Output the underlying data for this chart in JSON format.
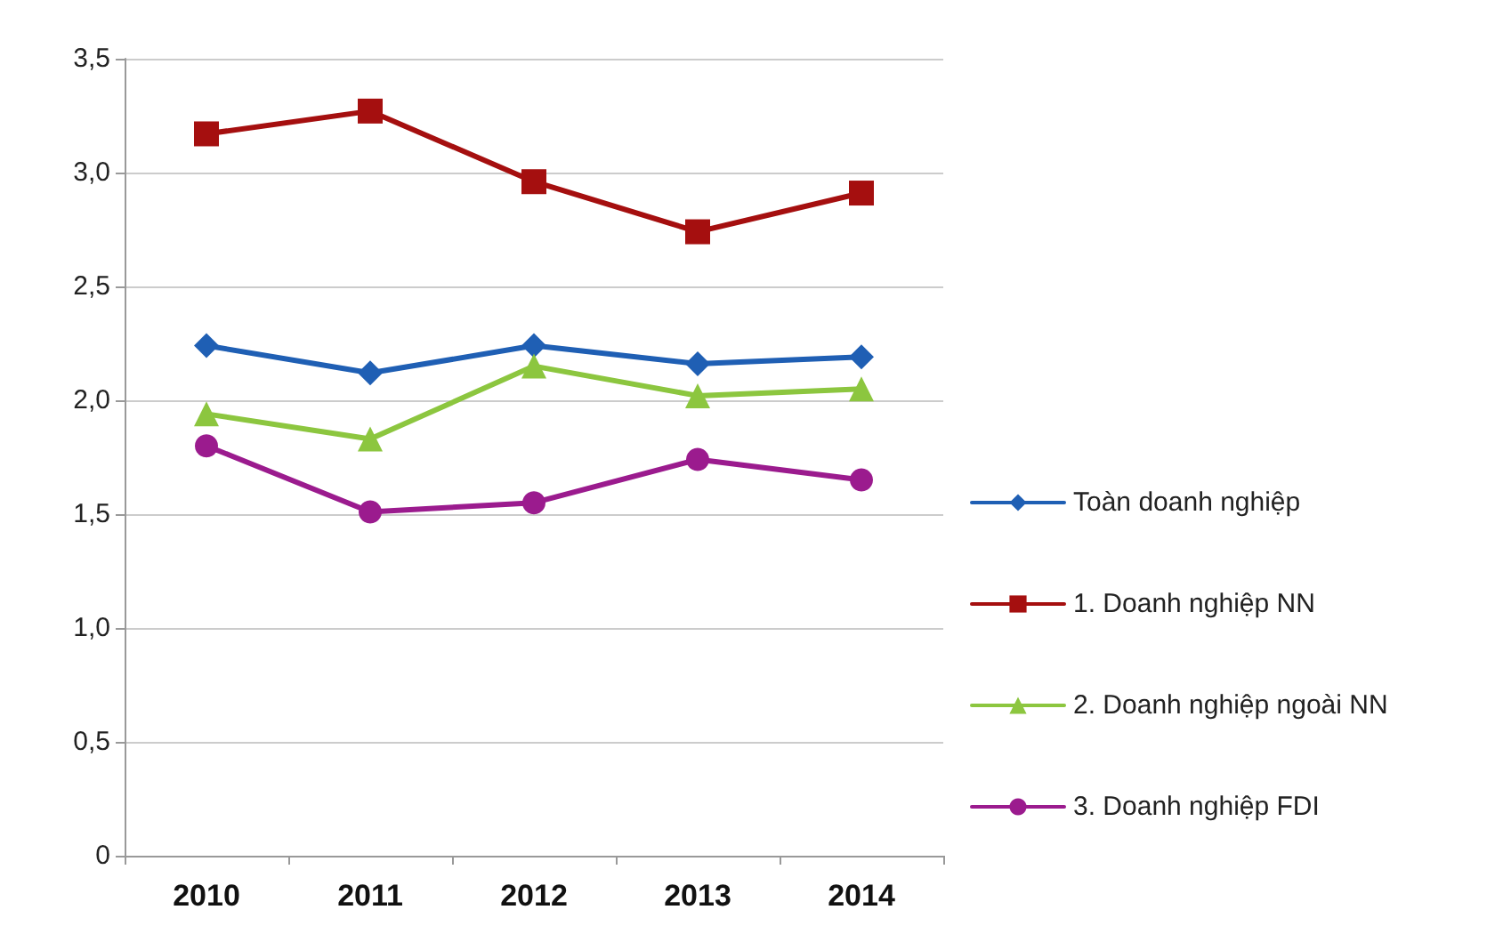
{
  "chart_data": {
    "type": "line",
    "categories": [
      "2010",
      "2011",
      "2012",
      "2013",
      "2014"
    ],
    "series": [
      {
        "name": "Toàn doanh nghiệp",
        "color": "#1f5fb4",
        "marker": "diamond",
        "values": [
          2.24,
          2.12,
          2.24,
          2.16,
          2.19
        ]
      },
      {
        "name": "1. Doanh nghiệp NN",
        "color": "#a50f0f",
        "marker": "square",
        "values": [
          3.17,
          3.27,
          2.96,
          2.74,
          2.91
        ]
      },
      {
        "name": "2. Doanh nghiệp ngoài NN",
        "color": "#8cc63f",
        "marker": "triangle",
        "values": [
          1.94,
          1.83,
          2.15,
          2.02,
          2.05
        ]
      },
      {
        "name": "3. Doanh nghiệp FDI",
        "color": "#9b1b8e",
        "marker": "circle",
        "values": [
          1.8,
          1.51,
          1.55,
          1.74,
          1.65
        ]
      }
    ],
    "ylim": [
      0,
      3.5
    ],
    "yticks": [
      0,
      {
        "value": 0.5,
        "label": "0,5"
      },
      {
        "value": 1,
        "label": "1,0"
      },
      {
        "value": 1.5,
        "label": "1,5"
      },
      {
        "value": 2,
        "label": "2,0"
      },
      {
        "value": 2.5,
        "label": "2,5"
      },
      {
        "value": 3,
        "label": "3,0"
      },
      {
        "value": 3.5,
        "label": "3,5"
      }
    ],
    "grid": "y",
    "legend": "right",
    "line_style": "solid"
  }
}
